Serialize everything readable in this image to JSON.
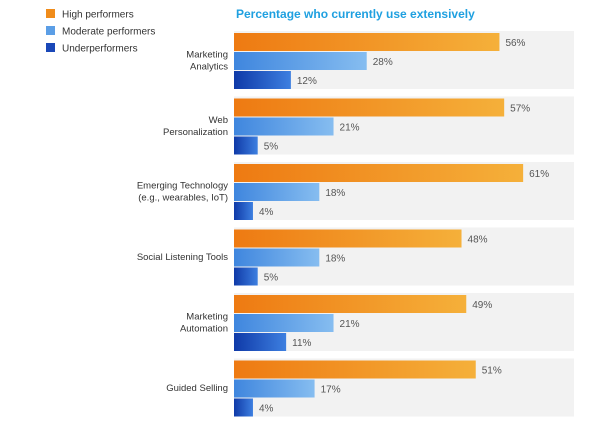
{
  "chart_data": {
    "type": "bar",
    "orientation": "horizontal",
    "title": "Percentage who currently use extensively",
    "legend_position": "top-left",
    "grid": false,
    "value_suffix": "%",
    "xlim": [
      0,
      61
    ],
    "categories": [
      [
        "Marketing",
        "Analytics"
      ],
      [
        "Web",
        "Personalization"
      ],
      [
        "Emerging Technology",
        "(e.g., wearables, IoT)"
      ],
      [
        "Social Listening Tools"
      ],
      [
        "Marketing",
        "Automation"
      ],
      [
        "Guided Selling"
      ]
    ],
    "series": [
      {
        "name": "High performers",
        "color": "#f08c1a",
        "values": [
          56,
          57,
          61,
          48,
          49,
          51
        ]
      },
      {
        "name": "Moderate performers",
        "color": "#5b9ee6",
        "values": [
          28,
          21,
          18,
          18,
          21,
          17
        ]
      },
      {
        "name": "Underperformers",
        "color": "#1a48b8",
        "values": [
          12,
          5,
          4,
          5,
          11,
          4
        ]
      }
    ]
  }
}
